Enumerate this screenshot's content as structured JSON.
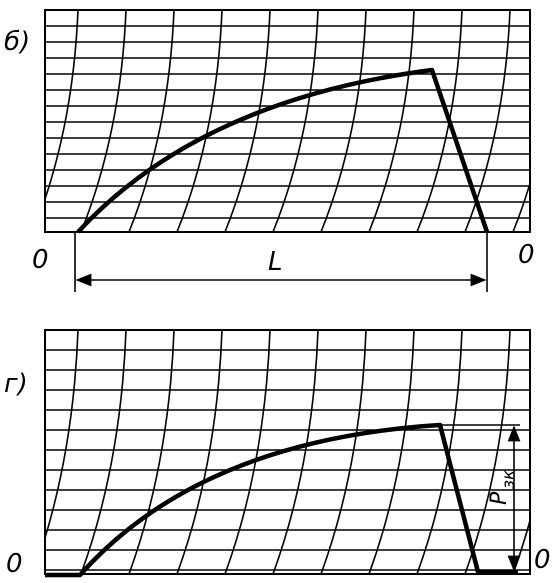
{
  "panel_b": {
    "label": "б)",
    "origin_left": "0",
    "dimension": "L",
    "origin_right": "0"
  },
  "panel_g": {
    "label": "г)",
    "origin_left": "0",
    "force_symbol": "P",
    "force_subscript": "зк",
    "origin_right": "0"
  }
}
